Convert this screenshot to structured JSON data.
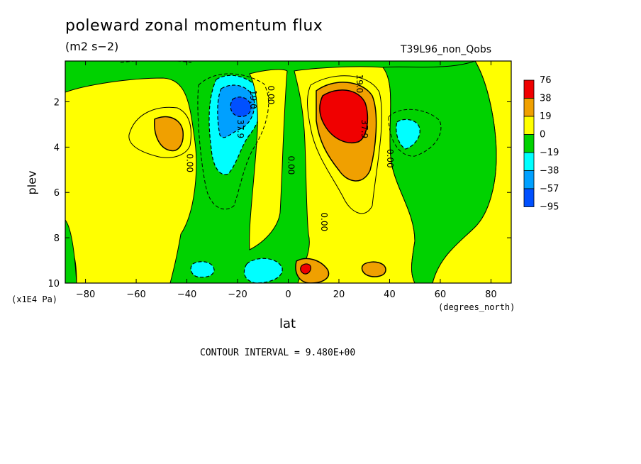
{
  "header": {
    "title": "poleward zonal momentum flux",
    "units": "(m2 s−2)",
    "run_name": "T39L96_non_Qobs"
  },
  "footer": {
    "contour_interval": "CONTOUR INTERVAL = 9.480E+00"
  },
  "chart_data": {
    "type": "heatmap",
    "title": "poleward zonal momentum flux",
    "subtitle": "(m2 s−2)",
    "xlabel": "lat",
    "x_units": "(degrees_north)",
    "ylabel": "plev",
    "y_units": "(x1E4 Pa)",
    "xlim": [
      -88,
      88
    ],
    "ylim": [
      0.2,
      10
    ],
    "y_inverted": true,
    "x_ticks": [
      -80,
      -60,
      -40,
      -20,
      0,
      20,
      40,
      60,
      80
    ],
    "y_ticks": [
      2,
      4,
      6,
      8,
      10
    ],
    "legend": {
      "placement": "right",
      "labels": [
        "76",
        "38",
        "19",
        "0",
        "−19",
        "−38",
        "−57",
        "−95"
      ],
      "colors": [
        "#f00000",
        "#f0a000",
        "#ffff00",
        "#00d200",
        "#00ffff",
        "#00a0ff",
        "#0050ff"
      ]
    },
    "contour_labels": [
      {
        "text": "19.0",
        "lat": -15,
        "plev": 1.9
      },
      {
        "text": "0.00",
        "lat": -8,
        "plev": 1.7
      },
      {
        "text": "37.9",
        "lat": -20,
        "plev": 3.2
      },
      {
        "text": "0.00",
        "lat": -40,
        "plev": 4.7
      },
      {
        "text": "0.00",
        "lat": 0,
        "plev": 4.8
      },
      {
        "text": "19.0",
        "lat": 27,
        "plev": 1.2
      },
      {
        "text": "37.9",
        "lat": 29,
        "plev": 3.2
      },
      {
        "text": "0.00",
        "lat": 39,
        "plev": 4.5
      },
      {
        "text": "0.00",
        "lat": 13,
        "plev": 7.3
      }
    ]
  }
}
